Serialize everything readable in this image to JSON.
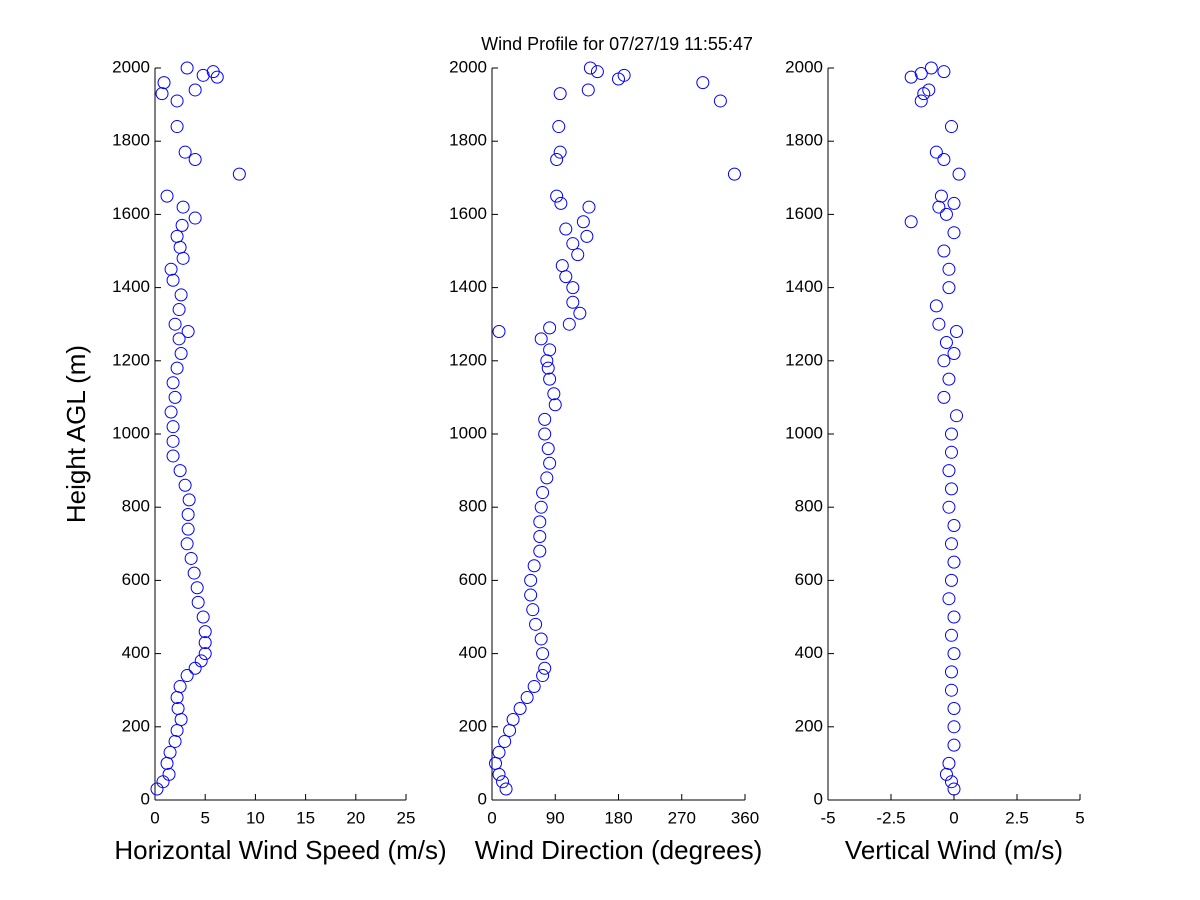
{
  "chart_data": [
    {
      "type": "scatter",
      "x_label": "Horizontal Wind Speed (m/s)",
      "y_label": "Height AGL (m)",
      "color": "#0000ff",
      "xlim": [
        0,
        25
      ],
      "xticks": [
        0,
        5,
        10,
        15,
        20,
        25
      ],
      "ylim": [
        0,
        2000
      ],
      "yticks": [
        0,
        200,
        400,
        600,
        800,
        1000,
        1200,
        1400,
        1600,
        1800,
        2000
      ],
      "x": [
        0.2,
        0.8,
        1.4,
        1.2,
        1.5,
        2,
        2.2,
        2.6,
        2.3,
        2.2,
        2.5,
        3.2,
        4,
        4.6,
        5,
        5,
        5,
        4.8,
        4.3,
        4.2,
        3.9,
        3.6,
        3.2,
        3.3,
        3.3,
        3.4,
        3,
        2.5,
        1.8,
        1.8,
        1.8,
        1.6,
        2,
        1.8,
        2.2,
        2.6,
        2.4,
        3.3,
        2,
        2.4,
        2.6,
        1.8,
        1.6,
        2.8,
        2.5,
        2.2,
        2.7,
        4,
        2.8,
        1.2,
        8.4,
        4,
        3,
        2.2,
        2.2,
        0.7,
        4,
        0.9,
        6.2,
        4.8,
        5.8,
        3.2
      ],
      "y": [
        30,
        50,
        70,
        100,
        130,
        160,
        190,
        220,
        250,
        280,
        310,
        340,
        360,
        380,
        400,
        430,
        460,
        500,
        540,
        580,
        620,
        660,
        700,
        740,
        780,
        820,
        860,
        900,
        940,
        980,
        1020,
        1060,
        1100,
        1140,
        1180,
        1220,
        1260,
        1280,
        1300,
        1340,
        1380,
        1420,
        1450,
        1480,
        1510,
        1540,
        1570,
        1590,
        1620,
        1650,
        1710,
        1750,
        1770,
        1840,
        1910,
        1930,
        1940,
        1960,
        1975,
        1980,
        1990,
        2000
      ]
    },
    {
      "type": "scatter",
      "title": "Wind Profile for  07/27/19 11:55:47",
      "x_label": "Wind Direction (degrees)",
      "color": "#0000ff",
      "xlim": [
        0,
        360
      ],
      "xticks": [
        0,
        90,
        180,
        270,
        360
      ],
      "ylim": [
        0,
        2000
      ],
      "yticks": [
        0,
        200,
        400,
        600,
        800,
        1000,
        1200,
        1400,
        1600,
        1800,
        2000
      ],
      "x": [
        20,
        15,
        10,
        5,
        10,
        18,
        25,
        30,
        40,
        50,
        60,
        72,
        75,
        72,
        70,
        62,
        58,
        55,
        55,
        60,
        68,
        68,
        68,
        70,
        72,
        78,
        82,
        80,
        75,
        75,
        90,
        88,
        82,
        80,
        78,
        82,
        70,
        10,
        82,
        110,
        125,
        115,
        115,
        105,
        100,
        122,
        115,
        135,
        105,
        130,
        138,
        98,
        92,
        345,
        92,
        97,
        95,
        325,
        97,
        137,
        300,
        180,
        188,
        150,
        140
      ],
      "y": [
        30,
        50,
        70,
        100,
        130,
        160,
        190,
        220,
        250,
        280,
        310,
        340,
        360,
        400,
        440,
        480,
        520,
        560,
        600,
        640,
        680,
        720,
        760,
        800,
        840,
        880,
        920,
        960,
        1000,
        1040,
        1080,
        1110,
        1150,
        1180,
        1200,
        1230,
        1260,
        1280,
        1290,
        1300,
        1330,
        1360,
        1400,
        1430,
        1460,
        1490,
        1520,
        1540,
        1560,
        1580,
        1620,
        1630,
        1650,
        1710,
        1750,
        1770,
        1840,
        1910,
        1930,
        1940,
        1960,
        1970,
        1980,
        1990,
        2000
      ]
    },
    {
      "type": "scatter",
      "x_label": "Vertical Wind (m/s)",
      "color": "#0000ff",
      "xlim": [
        -5,
        5
      ],
      "xticks": [
        -5,
        -2.5,
        0,
        2.5,
        5
      ],
      "ylim": [
        0,
        2000
      ],
      "yticks": [
        0,
        200,
        400,
        600,
        800,
        1000,
        1200,
        1400,
        1600,
        1800,
        2000
      ],
      "x": [
        0,
        -0.1,
        -0.3,
        -0.2,
        0,
        0,
        0,
        -0.1,
        -0.1,
        0,
        -0.1,
        0,
        -0.2,
        -0.1,
        0,
        -0.1,
        0,
        -0.2,
        -0.1,
        -0.2,
        -0.1,
        -0.1,
        0.1,
        -0.4,
        -0.2,
        -0.4,
        0,
        -0.3,
        0.1,
        -0.6,
        -0.7,
        -0.2,
        -0.2,
        -0.4,
        0,
        -1.7,
        -0.3,
        -0.6,
        0,
        -0.5,
        0.2,
        -0.4,
        -0.7,
        -0.1,
        -1.3,
        -1.2,
        -1,
        -1.7,
        -1.3,
        -0.4,
        -0.9
      ],
      "y": [
        30,
        50,
        70,
        100,
        150,
        200,
        250,
        300,
        350,
        400,
        450,
        500,
        550,
        600,
        650,
        700,
        750,
        800,
        850,
        900,
        950,
        1000,
        1050,
        1100,
        1150,
        1200,
        1220,
        1250,
        1280,
        1300,
        1350,
        1400,
        1450,
        1500,
        1550,
        1580,
        1600,
        1620,
        1630,
        1650,
        1710,
        1750,
        1770,
        1840,
        1910,
        1930,
        1940,
        1975,
        1985,
        1990,
        2000
      ]
    }
  ]
}
